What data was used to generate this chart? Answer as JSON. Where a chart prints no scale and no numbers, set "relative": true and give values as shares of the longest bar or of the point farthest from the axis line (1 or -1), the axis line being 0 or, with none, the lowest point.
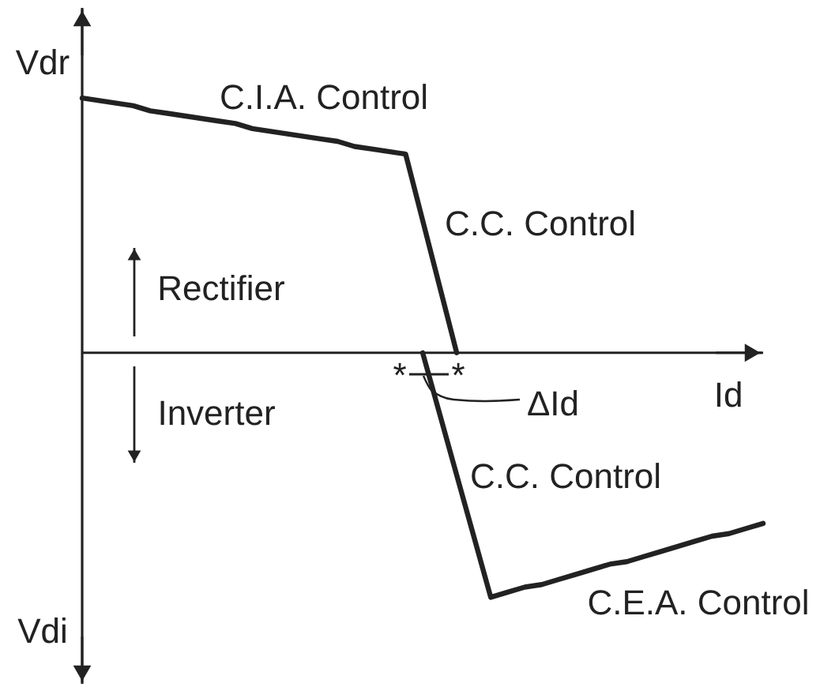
{
  "chart_data": {
    "type": "line",
    "relative": true,
    "xlabel": "Id",
    "ylabel": "Vdr",
    "categories": [
      null,
      null,
      null,
      null,
      null,
      null,
      null,
      null,
      null,
      null,
      null,
      null,
      null,
      null,
      null,
      null,
      null,
      null,
      null,
      null,
      null,
      null,
      null,
      null,
      null,
      null,
      null,
      null,
      null,
      null,
      null,
      null,
      null,
      null,
      null,
      null,
      null,
      null,
      null,
      null,
      null
    ],
    "series": [
      {
        "color": "#222222",
        "values": [
          1,
          0.99,
          0.98,
          0.97,
          0.95,
          0.94,
          0.93,
          0.92,
          0.91,
          0.9,
          0.88,
          0.87,
          0.86,
          0.85,
          0.84,
          0.83,
          0.81,
          0.8,
          0.79,
          0.78,
          0.52,
          0.26,
          0,
          null,
          null,
          null,
          null,
          null,
          null,
          null,
          null,
          null,
          null,
          null,
          null,
          null,
          null,
          null,
          null,
          null,
          null
        ]
      },
      {
        "color": "#222222",
        "values": [
          null,
          null,
          null,
          null,
          null,
          null,
          null,
          null,
          null,
          null,
          null,
          null,
          null,
          null,
          null,
          null,
          null,
          null,
          null,
          null,
          0,
          -0.24,
          -0.48,
          -0.72,
          -0.96,
          -0.94,
          -0.92,
          -0.91,
          -0.89,
          -0.87,
          -0.85,
          -0.83,
          -0.82,
          -0.8,
          -0.78,
          -0.76,
          -0.74,
          -0.72,
          -0.71,
          -0.69,
          -0.67
        ]
      }
    ],
    "annotations": [
      "C.I.A. Control",
      "C.C. Control",
      "C.C. Control",
      "C.E.A. Control",
      "Rectifier",
      "Inverter",
      "*",
      "*",
      "ΔId",
      "Vdi"
    ]
  }
}
